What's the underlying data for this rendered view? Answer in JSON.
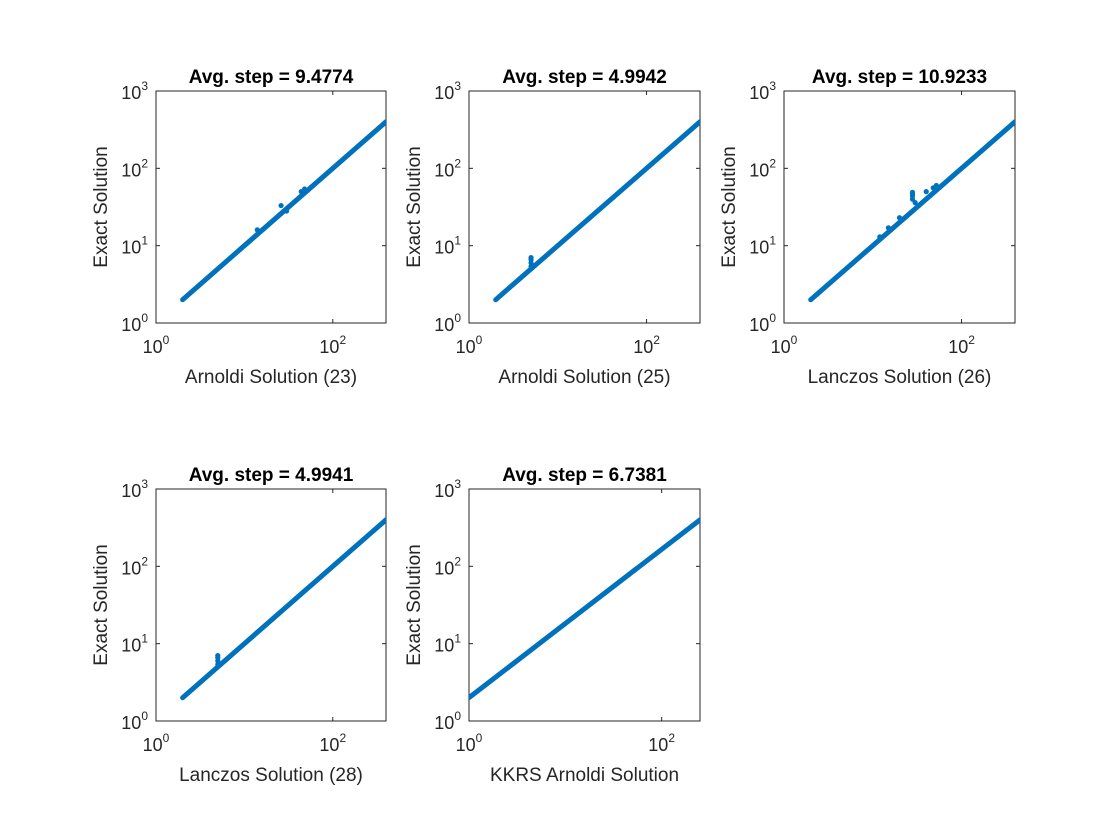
{
  "figure": {
    "background": "#ffffff",
    "line_color": "#0072BD",
    "axis_color": "#262626"
  },
  "chart_data": [
    {
      "type": "scatter",
      "title": "Avg. step = 9.4774",
      "xlabel": "Arnoldi Solution (23)",
      "ylabel": "Exact Solution",
      "xscale": "log",
      "yscale": "log",
      "xlim": [
        1,
        400
      ],
      "ylim": [
        1,
        1000
      ],
      "xticks": [
        {
          "base": "10",
          "exp": "0"
        },
        {
          "base": "10",
          "exp": "2"
        }
      ],
      "yticks": [
        {
          "base": "10",
          "exp": "0"
        },
        {
          "base": "10",
          "exp": "1"
        },
        {
          "base": "10",
          "exp": "2"
        },
        {
          "base": "10",
          "exp": "3"
        }
      ],
      "series": [
        {
          "name": "diagonal",
          "style": "thick-line",
          "x": [
            2,
            400
          ],
          "y": [
            2,
            400
          ]
        },
        {
          "name": "deviations",
          "style": "markers",
          "x": [
            14,
            26,
            30,
            44,
            48,
            52
          ],
          "y": [
            16,
            33,
            28,
            50,
            54,
            52
          ]
        }
      ]
    },
    {
      "type": "scatter",
      "title": "Avg. step = 4.9942",
      "xlabel": "Arnoldi Solution (25)",
      "ylabel": "Exact Solution",
      "xscale": "log",
      "yscale": "log",
      "xlim": [
        1,
        400
      ],
      "ylim": [
        1,
        1000
      ],
      "xticks": [
        {
          "base": "10",
          "exp": "0"
        },
        {
          "base": "10",
          "exp": "2"
        }
      ],
      "yticks": [
        {
          "base": "10",
          "exp": "0"
        },
        {
          "base": "10",
          "exp": "1"
        },
        {
          "base": "10",
          "exp": "2"
        },
        {
          "base": "10",
          "exp": "3"
        }
      ],
      "series": [
        {
          "name": "diagonal",
          "style": "thick-line",
          "x": [
            2,
            400
          ],
          "y": [
            2,
            400
          ]
        },
        {
          "name": "deviations",
          "style": "markers",
          "x": [
            5,
            5,
            5,
            5
          ],
          "y": [
            5.4,
            6.0,
            6.6,
            7.0
          ]
        }
      ]
    },
    {
      "type": "scatter",
      "title": "Avg. step = 10.9233",
      "xlabel": "Lanczos Solution (26)",
      "ylabel": "Exact Solution",
      "xscale": "log",
      "yscale": "log",
      "xlim": [
        1,
        400
      ],
      "ylim": [
        1,
        1000
      ],
      "xticks": [
        {
          "base": "10",
          "exp": "0"
        },
        {
          "base": "10",
          "exp": "2"
        }
      ],
      "yticks": [
        {
          "base": "10",
          "exp": "0"
        },
        {
          "base": "10",
          "exp": "1"
        },
        {
          "base": "10",
          "exp": "2"
        },
        {
          "base": "10",
          "exp": "3"
        }
      ],
      "series": [
        {
          "name": "diagonal",
          "style": "thick-line",
          "x": [
            2,
            400
          ],
          "y": [
            2,
            400
          ]
        },
        {
          "name": "deviations",
          "style": "markers",
          "x": [
            12,
            15,
            16,
            20,
            28,
            28,
            28,
            28,
            30,
            40,
            48,
            52
          ],
          "y": [
            13,
            17,
            16,
            23,
            40,
            44,
            47,
            49,
            36,
            50,
            56,
            60
          ]
        }
      ]
    },
    {
      "type": "scatter",
      "title": "Avg. step = 4.9941",
      "xlabel": "Lanczos Solution (28)",
      "ylabel": "Exact Solution",
      "xscale": "log",
      "yscale": "log",
      "xlim": [
        1,
        400
      ],
      "ylim": [
        1,
        1000
      ],
      "xticks": [
        {
          "base": "10",
          "exp": "0"
        },
        {
          "base": "10",
          "exp": "2"
        }
      ],
      "yticks": [
        {
          "base": "10",
          "exp": "0"
        },
        {
          "base": "10",
          "exp": "1"
        },
        {
          "base": "10",
          "exp": "2"
        },
        {
          "base": "10",
          "exp": "3"
        }
      ],
      "series": [
        {
          "name": "diagonal",
          "style": "thick-line",
          "x": [
            2,
            400
          ],
          "y": [
            2,
            400
          ]
        },
        {
          "name": "deviations",
          "style": "markers",
          "x": [
            5,
            5,
            5,
            5
          ],
          "y": [
            5.4,
            6.0,
            6.6,
            7.0
          ]
        }
      ]
    },
    {
      "type": "scatter",
      "title": "Avg. step = 6.7381",
      "xlabel": "KKRS Arnoldi Solution",
      "ylabel": "Exact Solution",
      "xscale": "log",
      "yscale": "log",
      "xlim": [
        1,
        250
      ],
      "ylim": [
        1,
        1000
      ],
      "xticks": [
        {
          "base": "10",
          "exp": "0"
        },
        {
          "base": "10",
          "exp": "2"
        }
      ],
      "yticks": [
        {
          "base": "10",
          "exp": "0"
        },
        {
          "base": "10",
          "exp": "1"
        },
        {
          "base": "10",
          "exp": "2"
        },
        {
          "base": "10",
          "exp": "3"
        }
      ],
      "series": [
        {
          "name": "diagonal",
          "style": "thick-line",
          "x": [
            1,
            250
          ],
          "y": [
            2,
            400
          ]
        }
      ]
    }
  ]
}
